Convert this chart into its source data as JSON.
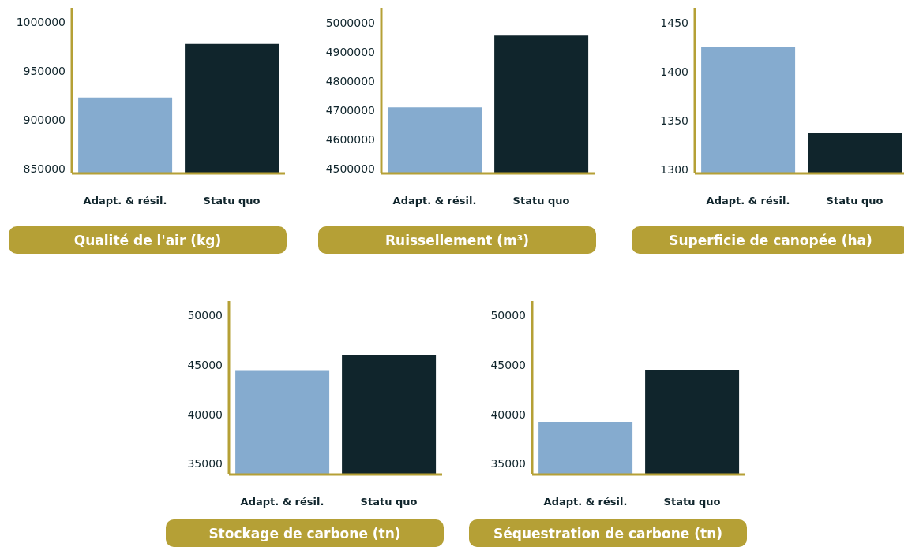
{
  "chart_data": [
    {
      "type": "bar",
      "title": "Qualité de l'air (kg)",
      "categories": [
        "Adapt. & résil.",
        "Statu quo"
      ],
      "values": [
        923000,
        978000
      ],
      "colors": [
        "#85abcf",
        "#10252c"
      ],
      "ylim": [
        845000,
        1015000
      ],
      "yticks": [
        850000,
        900000,
        950000,
        1000000
      ]
    },
    {
      "type": "bar",
      "title": "Ruissellement (m³)",
      "categories": [
        "Adapt. & résil.",
        "Statu quo"
      ],
      "values": [
        4710000,
        4955000
      ],
      "colors": [
        "#85abcf",
        "#10252c"
      ],
      "ylim": [
        4485000,
        5050000
      ],
      "yticks": [
        4500000,
        4600000,
        4700000,
        4800000,
        4900000,
        5000000
      ]
    },
    {
      "type": "bar",
      "title": "Superficie de canopée (ha)",
      "categories": [
        "Adapt. & résil.",
        "Statu quo"
      ],
      "values": [
        1425,
        1337
      ],
      "colors": [
        "#85abcf",
        "#10252c"
      ],
      "ylim": [
        1296,
        1465
      ],
      "yticks": [
        1300,
        1350,
        1400,
        1450
      ]
    },
    {
      "type": "bar",
      "title": "Stockage de carbone (tn)",
      "categories": [
        "Adapt. & résil.",
        "Statu quo"
      ],
      "values": [
        44400,
        46000
      ],
      "colors": [
        "#85abcf",
        "#10252c"
      ],
      "ylim": [
        33900,
        51450
      ],
      "yticks": [
        35000,
        40000,
        45000,
        50000
      ]
    },
    {
      "type": "bar",
      "title": "Séquestration de carbone (tn)",
      "categories": [
        "Adapt. & résil.",
        "Statu quo"
      ],
      "values": [
        39200,
        44500
      ],
      "colors": [
        "#85abcf",
        "#10252c"
      ],
      "ylim": [
        33900,
        51450
      ],
      "yticks": [
        35000,
        40000,
        45000,
        50000
      ]
    }
  ]
}
